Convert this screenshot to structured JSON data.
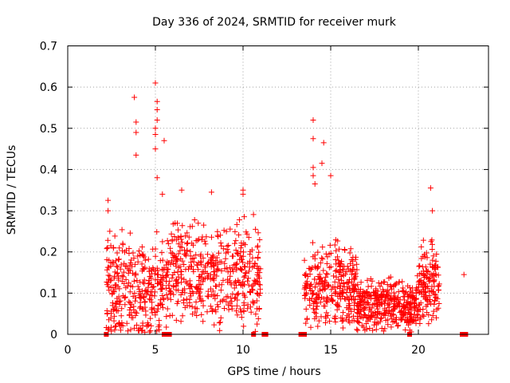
{
  "chart_data": {
    "type": "scatter",
    "title": "Day 336 of 2024, SRMTID for receiver murk",
    "xlabel": "GPS time / hours",
    "ylabel": "SRMTID / TECUs",
    "xlim": [
      0,
      24
    ],
    "ylim": [
      0,
      0.7
    ],
    "xticks": [
      0,
      5,
      10,
      15,
      20
    ],
    "yticks": [
      0,
      0.1,
      0.2,
      0.3,
      0.4,
      0.5,
      0.6,
      0.7
    ],
    "xtick_labels": [
      "0",
      "5",
      "10",
      "15",
      "20"
    ],
    "ytick_labels": [
      "0",
      "0.1",
      "0.2",
      "0.3",
      "0.4",
      "0.5",
      "0.6",
      "0.7"
    ],
    "grid": true,
    "marker": "+",
    "color": "#ff0000",
    "series": [
      {
        "name": "SRMTID",
        "segments": [
          {
            "start": 2.2,
            "end": 5.5,
            "base": 0.11,
            "spread": 0.1,
            "count": 320
          },
          {
            "start": 5.6,
            "end": 11.0,
            "base": 0.14,
            "spread": 0.1,
            "count": 480
          },
          {
            "start": 13.5,
            "end": 16.5,
            "base": 0.12,
            "spread": 0.08,
            "count": 300
          },
          {
            "start": 16.5,
            "end": 20.0,
            "base": 0.07,
            "spread": 0.05,
            "count": 380
          },
          {
            "start": 20.0,
            "end": 21.2,
            "base": 0.12,
            "spread": 0.08,
            "count": 140
          }
        ],
        "points": [
          [
            2.3,
            0.325
          ],
          [
            2.3,
            0.3
          ],
          [
            2.4,
            0.25
          ],
          [
            3.8,
            0.575
          ],
          [
            3.9,
            0.515
          ],
          [
            3.9,
            0.49
          ],
          [
            3.9,
            0.435
          ],
          [
            5.0,
            0.61
          ],
          [
            5.1,
            0.565
          ],
          [
            5.1,
            0.545
          ],
          [
            5.1,
            0.52
          ],
          [
            5.0,
            0.5
          ],
          [
            5.0,
            0.485
          ],
          [
            5.0,
            0.45
          ],
          [
            5.1,
            0.38
          ],
          [
            5.5,
            0.47
          ],
          [
            5.4,
            0.34
          ],
          [
            6.5,
            0.35
          ],
          [
            8.2,
            0.345
          ],
          [
            10.0,
            0.35
          ],
          [
            10.0,
            0.34
          ],
          [
            14.0,
            0.52
          ],
          [
            14.0,
            0.475
          ],
          [
            14.6,
            0.465
          ],
          [
            14.5,
            0.415
          ],
          [
            14.0,
            0.405
          ],
          [
            14.0,
            0.385
          ],
          [
            14.1,
            0.365
          ],
          [
            15.0,
            0.385
          ],
          [
            20.7,
            0.355
          ],
          [
            20.8,
            0.3
          ],
          [
            10.8,
            0.025
          ],
          [
            22.6,
            0.145
          ]
        ],
        "zeros": [
          2.2,
          5.5,
          5.6,
          5.8,
          10.6,
          11.2,
          11.3,
          13.3,
          13.5,
          19.5,
          22.5,
          22.7
        ]
      }
    ]
  }
}
